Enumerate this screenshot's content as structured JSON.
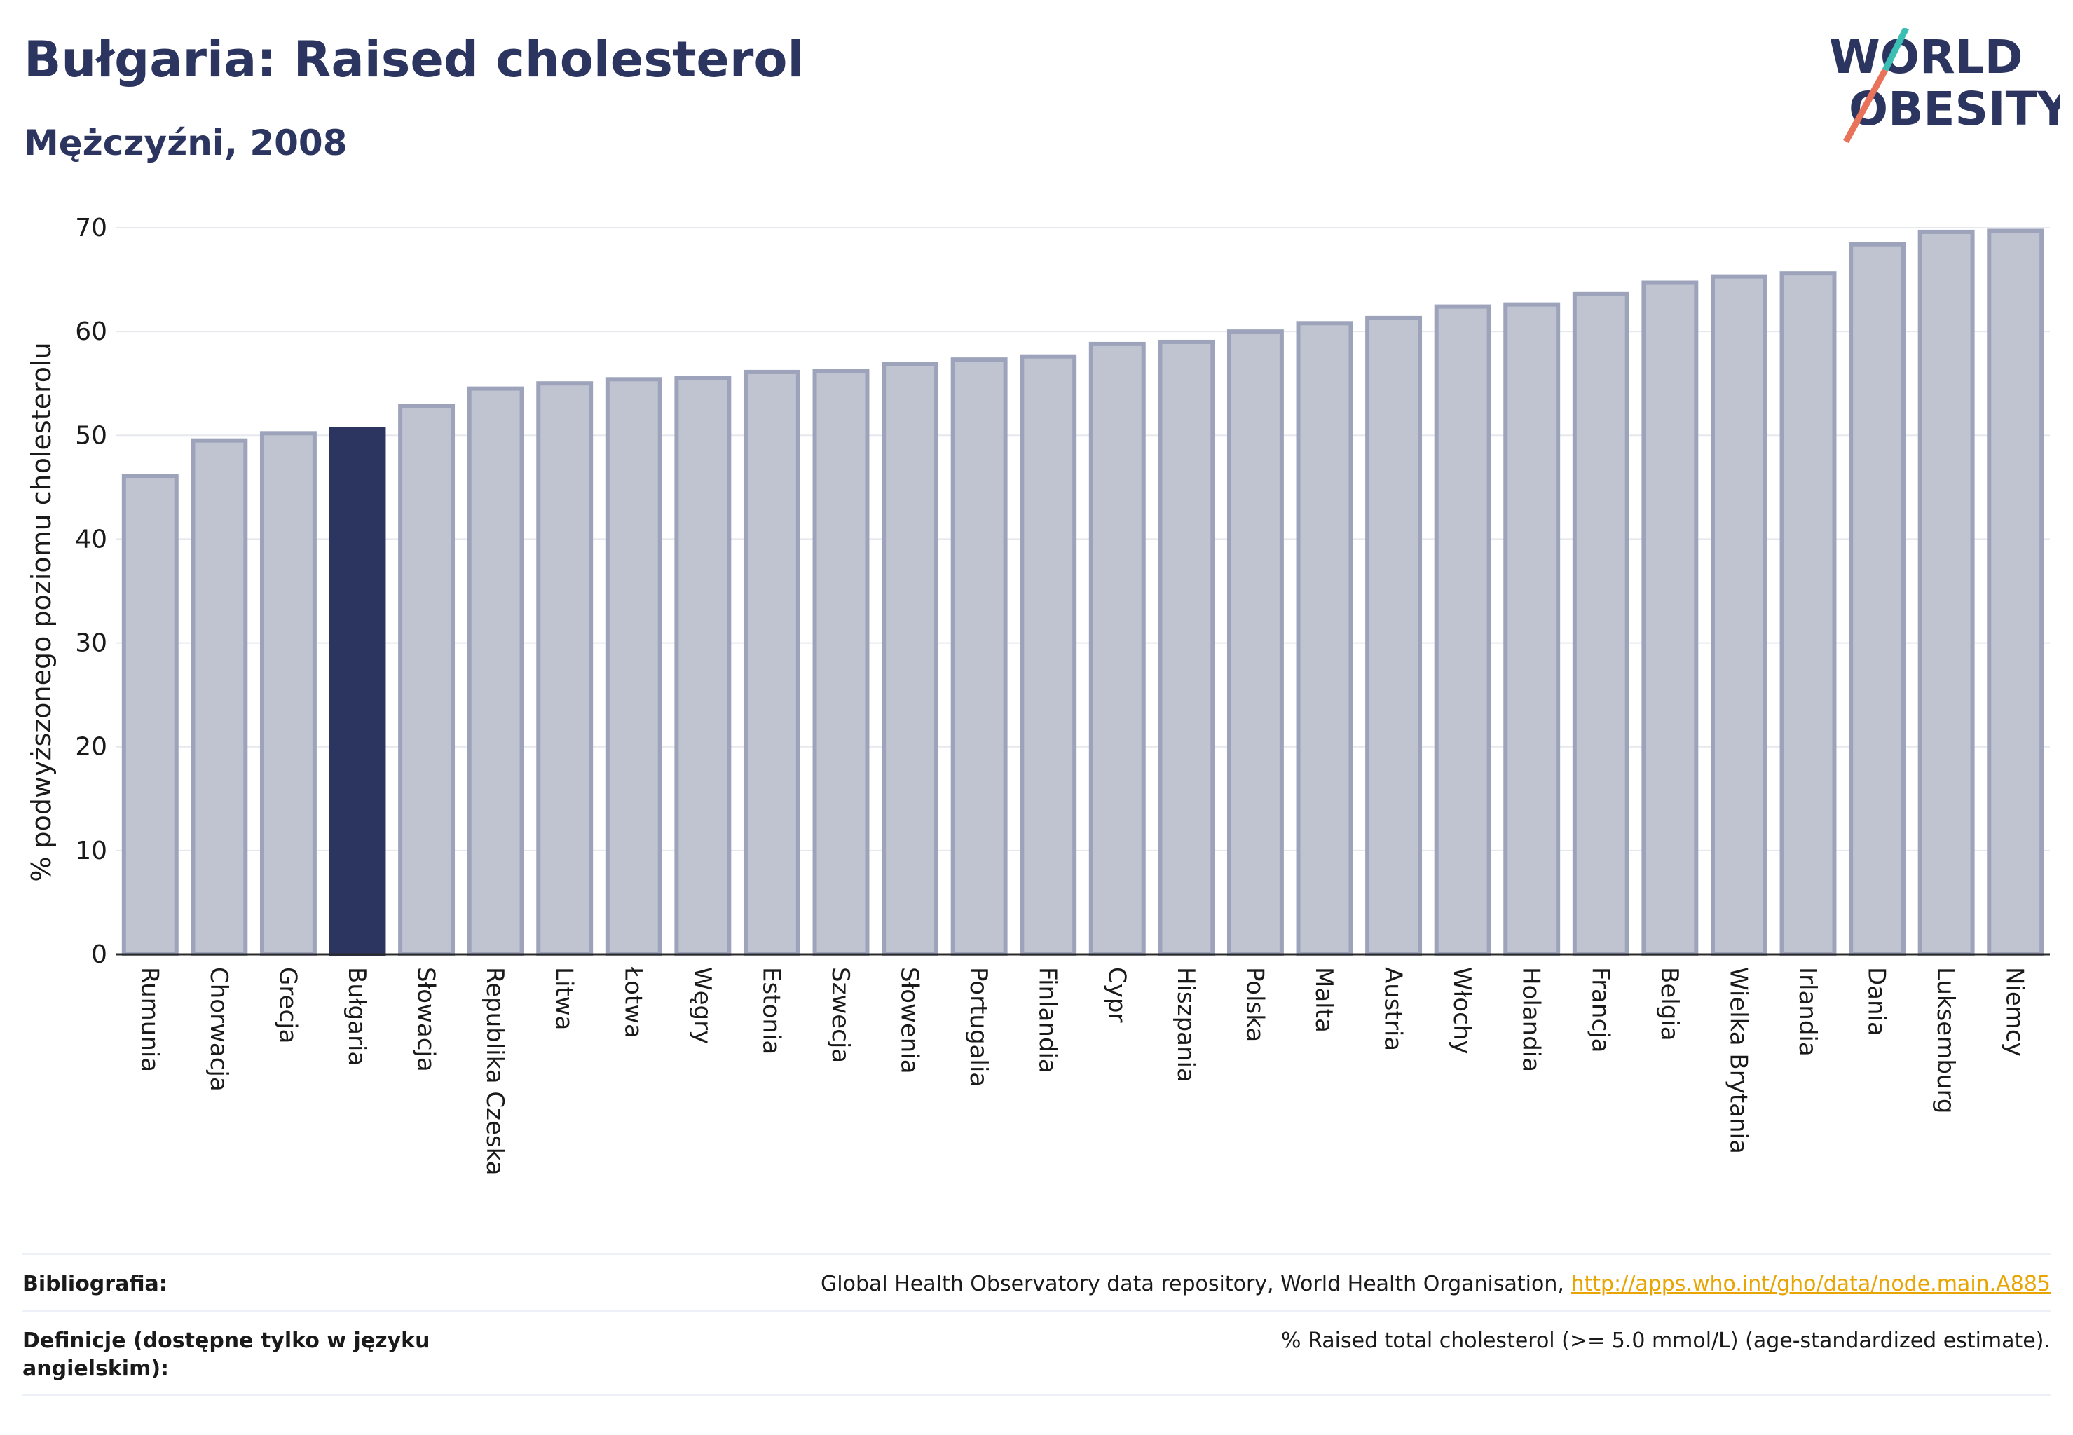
{
  "header": {
    "title": "Bułgaria: Raised cholesterol",
    "subtitle": "Mężczyźni, 2008"
  },
  "logo": {
    "line1": "WORLD",
    "line2": "OBESITY"
  },
  "colors": {
    "bar": "#c0c3d0",
    "bar_stroke": "#9da3ba",
    "highlight": "#2c3560",
    "title": "#2c3560",
    "link": "#e8a400"
  },
  "chart_data": {
    "type": "bar",
    "categories": [
      "Rumunia",
      "Chorwacja",
      "Grecja",
      "Bułgaria",
      "Słowacja",
      "Republika Czeska",
      "Litwa",
      "Łotwa",
      "Węgry",
      "Estonia",
      "Szwecja",
      "Słowenia",
      "Portugalia",
      "Finlandia",
      "Cypr",
      "Hiszpania",
      "Polska",
      "Malta",
      "Austria",
      "Włochy",
      "Holandia",
      "Francja",
      "Belgia",
      "Wielka Brytania",
      "Irlandia",
      "Dania",
      "Luksemburg",
      "Niemcy"
    ],
    "values": [
      46.1,
      49.5,
      50.2,
      50.6,
      52.8,
      54.5,
      55.0,
      55.4,
      55.5,
      56.1,
      56.2,
      56.9,
      57.3,
      57.6,
      58.8,
      59.0,
      60.0,
      60.8,
      61.3,
      62.4,
      62.6,
      63.6,
      64.7,
      65.3,
      65.6,
      68.4,
      69.6,
      69.7
    ],
    "highlight": "Bułgaria",
    "ylabel": "% podwyższonego poziomu cholesterolu",
    "xlabel": "",
    "ylim": [
      0,
      70
    ],
    "yticks": [
      0,
      10,
      20,
      30,
      40,
      50,
      60,
      70
    ],
    "grid": true
  },
  "footer": {
    "bibliography_label": "Bibliografia:",
    "bibliography_text": "Global Health Observatory data repository, World Health Organisation, ",
    "bibliography_link": "http://apps.who.int/gho/data/node.main.A885",
    "definition_label": "Definicje (dostępne tylko w języku angielskim):",
    "definition_text": "% Raised total cholesterol (>= 5.0 mmol/L) (age-standardized estimate)."
  }
}
